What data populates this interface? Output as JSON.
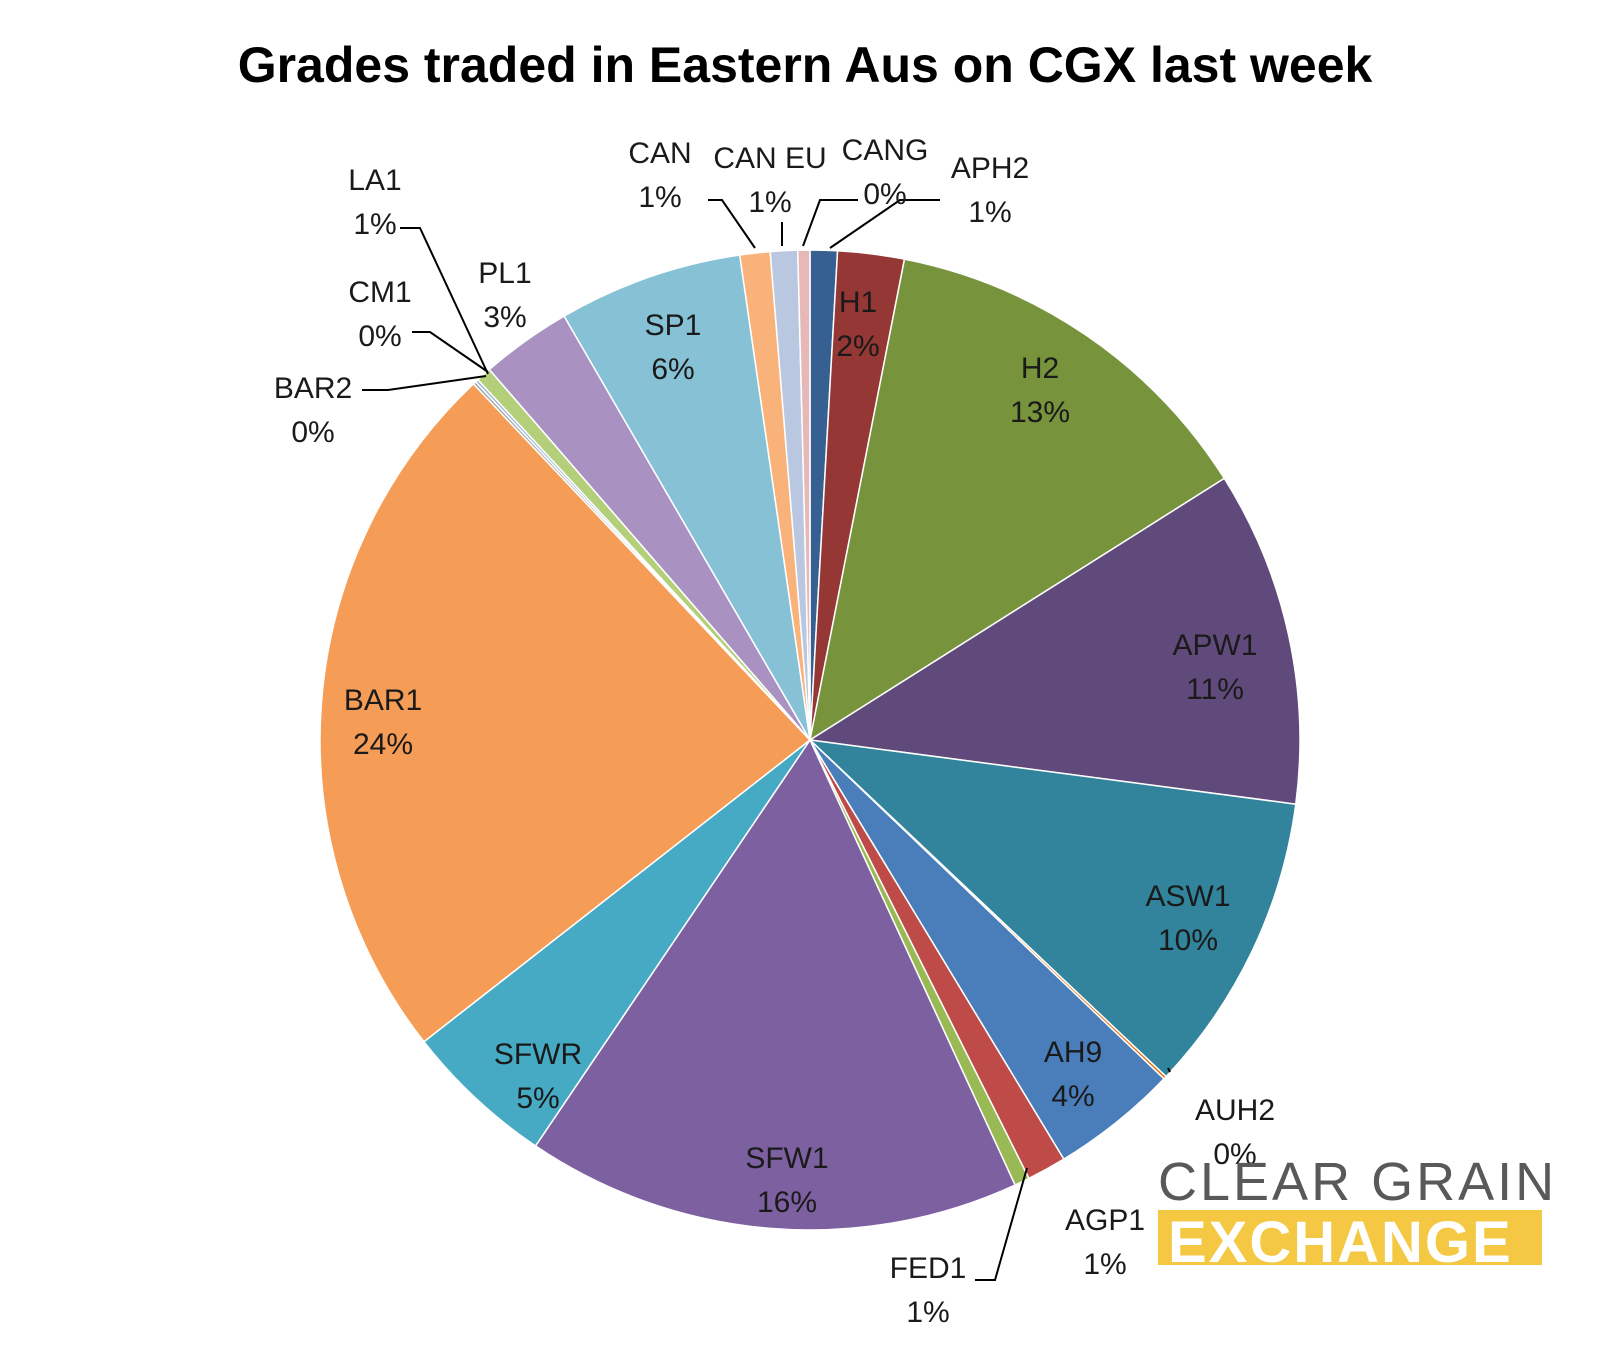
{
  "chart_data": {
    "type": "pie",
    "title": "Grades traded in Eastern Aus on CGX last week",
    "slices": [
      {
        "label": "APH2",
        "pct_label": "1%",
        "value": 0.9,
        "color": "#376092"
      },
      {
        "label": "H1",
        "pct_label": "2%",
        "value": 2.2,
        "color": "#953735"
      },
      {
        "label": "H2",
        "pct_label": "13%",
        "value": 13.0,
        "color": "#77933c"
      },
      {
        "label": "APW1",
        "pct_label": "11%",
        "value": 11.1,
        "color": "#604a7b"
      },
      {
        "label": "ASW1",
        "pct_label": "10%",
        "value": 10.0,
        "color": "#31849b"
      },
      {
        "label": "AUH2",
        "pct_label": "0%",
        "value": 0.1,
        "color": "#e46c0a"
      },
      {
        "label": "AH9",
        "pct_label": "4%",
        "value": 4.2,
        "color": "#4a7ebb"
      },
      {
        "label": "AGP1",
        "pct_label": "1%",
        "value": 1.3,
        "color": "#be4b48"
      },
      {
        "label": "FED1",
        "pct_label": "1%",
        "value": 0.5,
        "color": "#98b954"
      },
      {
        "label": "SFW1",
        "pct_label": "16%",
        "value": 16.4,
        "color": "#7d60a0"
      },
      {
        "label": "SFWR",
        "pct_label": "5%",
        "value": 5.0,
        "color": "#46aac5"
      },
      {
        "label": "BAR1",
        "pct_label": "24%",
        "value": 23.6,
        "color": "#f59d56"
      },
      {
        "label": "BAR2",
        "pct_label": "0%",
        "value": 0.1,
        "color": "#a5a5a5"
      },
      {
        "label": "CM1",
        "pct_label": "0%",
        "value": 0.1,
        "color": "#95b3d7"
      },
      {
        "label": "LA1",
        "pct_label": "1%",
        "value": 0.5,
        "color": "#b3cf79"
      },
      {
        "label": "PL1",
        "pct_label": "3%",
        "value": 3.0,
        "color": "#a992c1"
      },
      {
        "label": "SP1",
        "pct_label": "6%",
        "value": 6.1,
        "color": "#86c1d6"
      },
      {
        "label": "CAN",
        "pct_label": "1%",
        "value": 1.0,
        "color": "#f9b27a"
      },
      {
        "label": "CAN EU",
        "pct_label": "1%",
        "value": 0.9,
        "color": "#b9c7e0"
      },
      {
        "label": "CANG",
        "pct_label": "0%",
        "value": 0.4,
        "color": "#e6b9b8"
      }
    ]
  },
  "branding": {
    "line1": "CLEAR GRAIN",
    "line2": "EXCHANGE",
    "color_text": "#58595b",
    "color_band": "#f4c842"
  }
}
